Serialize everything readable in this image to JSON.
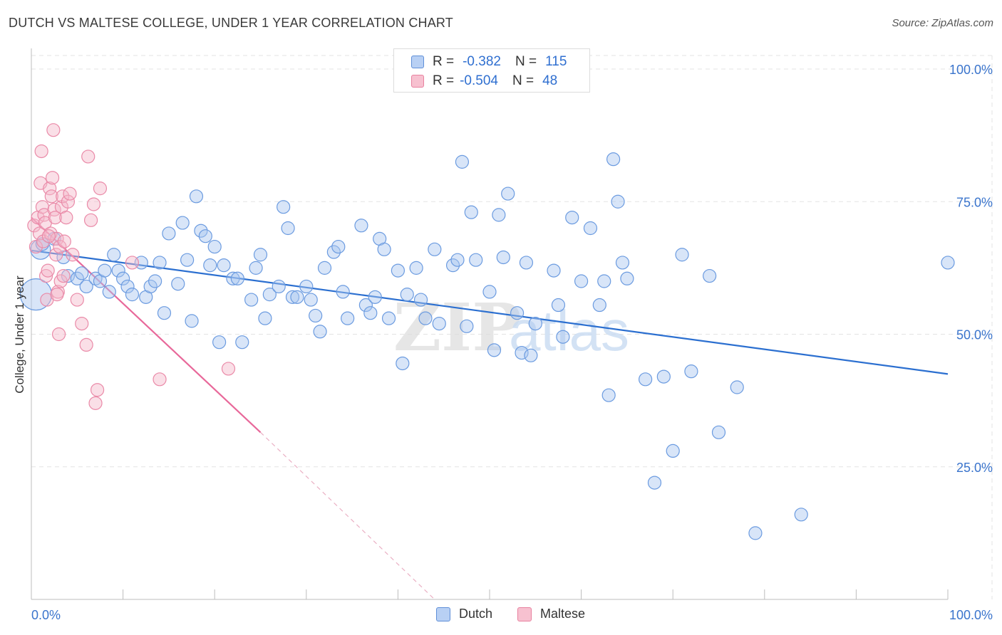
{
  "title": "DUTCH VS MALTESE COLLEGE, UNDER 1 YEAR CORRELATION CHART",
  "source": "Source: ZipAtlas.com",
  "watermark": {
    "zip": "ZIP",
    "atlas": "atlas"
  },
  "stats": [
    {
      "r_label": "R =",
      "r_value": "-0.382",
      "n_label": "N =",
      "n_value": "115"
    },
    {
      "r_label": "R =",
      "r_value": "-0.504",
      "n_label": "N =",
      "n_value": "48"
    }
  ],
  "colors": {
    "dutch_fill": "#a9c6f0",
    "dutch_stroke": "#6b9be0",
    "dutch_line": "#2b6fd0",
    "maltese_fill": "#f5b7c9",
    "maltese_stroke": "#ea8aa8",
    "maltese_line": "#e8689a",
    "tick_label": "#3a74cc",
    "grid": "#e3e3e3"
  },
  "chart_data": {
    "type": "scatter",
    "title": "DUTCH VS MALTESE COLLEGE, UNDER 1 YEAR CORRELATION CHART",
    "xlabel": "",
    "ylabel": "College, Under 1 year",
    "xlim": [
      0,
      100
    ],
    "ylim": [
      0,
      105
    ],
    "x_tick_labels": [
      "0.0%",
      "100.0%"
    ],
    "y_ticks": [
      25,
      50,
      75,
      100
    ],
    "y_tick_labels": [
      "25.0%",
      "50.0%",
      "75.0%",
      "100.0%"
    ],
    "grid": true,
    "legend_position": "bottom-center",
    "series": [
      {
        "name": "Dutch",
        "r": -0.382,
        "n": 115,
        "trend": {
          "x": [
            0,
            100
          ],
          "y": [
            65.8,
            42.5
          ]
        },
        "points": [
          [
            0.5,
            57.5
          ],
          [
            1,
            66
          ],
          [
            1.2,
            67
          ],
          [
            2.5,
            68
          ],
          [
            3.5,
            64.5
          ],
          [
            4,
            61
          ],
          [
            5,
            60.5
          ],
          [
            6,
            59
          ],
          [
            5.5,
            61.5
          ],
          [
            7,
            60.5
          ],
          [
            7.5,
            60
          ],
          [
            8,
            62
          ],
          [
            8.5,
            58
          ],
          [
            9,
            65
          ],
          [
            9.5,
            62
          ],
          [
            10,
            60.5
          ],
          [
            10.5,
            59
          ],
          [
            11,
            57.5
          ],
          [
            12,
            63.5
          ],
          [
            12.5,
            57
          ],
          [
            13,
            59
          ],
          [
            13.5,
            60
          ],
          [
            14,
            63.5
          ],
          [
            14.5,
            54
          ],
          [
            15,
            69
          ],
          [
            16,
            59.5
          ],
          [
            16.5,
            71
          ],
          [
            17,
            64
          ],
          [
            17.5,
            52.5
          ],
          [
            18,
            76
          ],
          [
            18.5,
            69.5
          ],
          [
            19,
            68.5
          ],
          [
            19.5,
            63
          ],
          [
            20,
            66.5
          ],
          [
            20.5,
            48.5
          ],
          [
            21,
            63
          ],
          [
            22,
            60.5
          ],
          [
            22.5,
            60.5
          ],
          [
            23,
            48.5
          ],
          [
            24,
            56.5
          ],
          [
            24.5,
            62.5
          ],
          [
            25,
            65
          ],
          [
            25.5,
            53
          ],
          [
            26,
            57.5
          ],
          [
            27,
            59
          ],
          [
            27.5,
            74
          ],
          [
            28,
            70
          ],
          [
            28.5,
            57
          ],
          [
            29,
            57
          ],
          [
            30,
            59
          ],
          [
            30.5,
            56.5
          ],
          [
            31,
            53.5
          ],
          [
            31.5,
            50.5
          ],
          [
            32,
            62.5
          ],
          [
            33,
            65.5
          ],
          [
            33.5,
            66.5
          ],
          [
            34,
            58
          ],
          [
            34.5,
            53
          ],
          [
            36,
            70.5
          ],
          [
            36.5,
            55.5
          ],
          [
            37,
            54
          ],
          [
            37.5,
            57
          ],
          [
            38,
            68
          ],
          [
            38.5,
            66
          ],
          [
            39,
            53
          ],
          [
            40,
            62
          ],
          [
            40.5,
            44.5
          ],
          [
            41,
            57.5
          ],
          [
            42,
            62.5
          ],
          [
            42.5,
            56.5
          ],
          [
            43,
            53
          ],
          [
            44,
            66
          ],
          [
            44.5,
            52
          ],
          [
            46,
            63
          ],
          [
            46.5,
            64
          ],
          [
            47,
            82.5
          ],
          [
            47.5,
            51.5
          ],
          [
            48,
            73
          ],
          [
            48.5,
            64
          ],
          [
            50,
            58
          ],
          [
            50.5,
            47
          ],
          [
            51,
            72.5
          ],
          [
            51.5,
            64.5
          ],
          [
            52,
            76.5
          ],
          [
            53,
            54
          ],
          [
            53.5,
            46.5
          ],
          [
            54,
            63.5
          ],
          [
            54.5,
            46
          ],
          [
            55,
            52
          ],
          [
            57,
            62
          ],
          [
            57.5,
            55.5
          ],
          [
            58,
            49.5
          ],
          [
            59,
            72
          ],
          [
            60,
            60
          ],
          [
            61,
            70
          ],
          [
            62,
            55.5
          ],
          [
            62.5,
            60
          ],
          [
            63,
            38.5
          ],
          [
            63.5,
            83
          ],
          [
            64,
            75
          ],
          [
            64.5,
            63.5
          ],
          [
            65,
            60.5
          ],
          [
            67,
            41.5
          ],
          [
            68,
            22
          ],
          [
            69,
            42
          ],
          [
            70,
            28
          ],
          [
            71,
            65
          ],
          [
            72,
            43
          ],
          [
            74,
            61
          ],
          [
            75,
            31.5
          ],
          [
            77,
            40
          ],
          [
            79,
            12.5
          ],
          [
            84,
            16
          ],
          [
            100,
            63.5
          ]
        ]
      },
      {
        "name": "Maltese",
        "r": -0.504,
        "n": 48,
        "trend": {
          "x": [
            0,
            25
          ],
          "y": [
            72,
            31.5
          ]
        },
        "trend_dashed": {
          "x": [
            25,
            44
          ],
          "y": [
            31.5,
            0
          ]
        },
        "points": [
          [
            0.3,
            70.5
          ],
          [
            0.5,
            66.5
          ],
          [
            0.7,
            72
          ],
          [
            0.9,
            69
          ],
          [
            1,
            78.5
          ],
          [
            1.1,
            84.5
          ],
          [
            1.2,
            74
          ],
          [
            1.3,
            67.5
          ],
          [
            1.4,
            72.5
          ],
          [
            1.5,
            71
          ],
          [
            1.6,
            61
          ],
          [
            1.7,
            56.5
          ],
          [
            1.8,
            62
          ],
          [
            2,
            77.5
          ],
          [
            2.1,
            69
          ],
          [
            2.2,
            76
          ],
          [
            2.3,
            79.5
          ],
          [
            2.4,
            88.5
          ],
          [
            2.5,
            73.5
          ],
          [
            2.6,
            72
          ],
          [
            2.7,
            65
          ],
          [
            2.8,
            68
          ],
          [
            2.9,
            58
          ],
          [
            3,
            50
          ],
          [
            3.1,
            66.5
          ],
          [
            3.2,
            60
          ],
          [
            3.3,
            74
          ],
          [
            3.4,
            76
          ],
          [
            3.5,
            61
          ],
          [
            3.6,
            67.5
          ],
          [
            3.8,
            72
          ],
          [
            4,
            75
          ],
          [
            4.2,
            76.5
          ],
          [
            4.5,
            65
          ],
          [
            5,
            56.5
          ],
          [
            5.5,
            52
          ],
          [
            6,
            48
          ],
          [
            6.2,
            83.5
          ],
          [
            6.5,
            71.5
          ],
          [
            6.8,
            74.5
          ],
          [
            7,
            37
          ],
          [
            7.2,
            39.5
          ],
          [
            7.5,
            77.5
          ],
          [
            11,
            63.5
          ],
          [
            14,
            41.5
          ],
          [
            21.5,
            43.5
          ],
          [
            2.8,
            57.5
          ],
          [
            1.9,
            68.5
          ]
        ]
      }
    ]
  },
  "legend": [
    {
      "label": "Dutch"
    },
    {
      "label": "Maltese"
    }
  ]
}
